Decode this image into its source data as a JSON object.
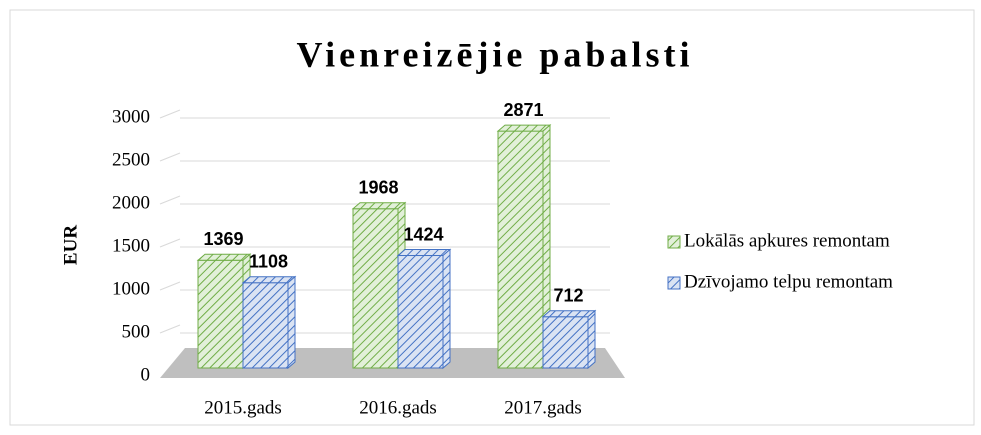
{
  "chart_data": {
    "type": "bar3d",
    "title": "Vienreizējie pabalsti",
    "y_label": "EUR",
    "categories": [
      "2015.gads",
      "2016.gads",
      "2017.gads"
    ],
    "series": [
      {
        "name": "Lokālās apkures remontam",
        "color": "#70ad47",
        "values": [
          1369,
          1968,
          2871
        ]
      },
      {
        "name": "Dzīvojamo telpu remontam",
        "color": "#4472c4",
        "values": [
          1108,
          1424,
          712
        ]
      }
    ],
    "ylim": [
      0,
      3000
    ],
    "yticks": [
      0,
      500,
      1000,
      1500,
      2000,
      2500,
      3000
    ],
    "grid": true,
    "legend": "right"
  }
}
